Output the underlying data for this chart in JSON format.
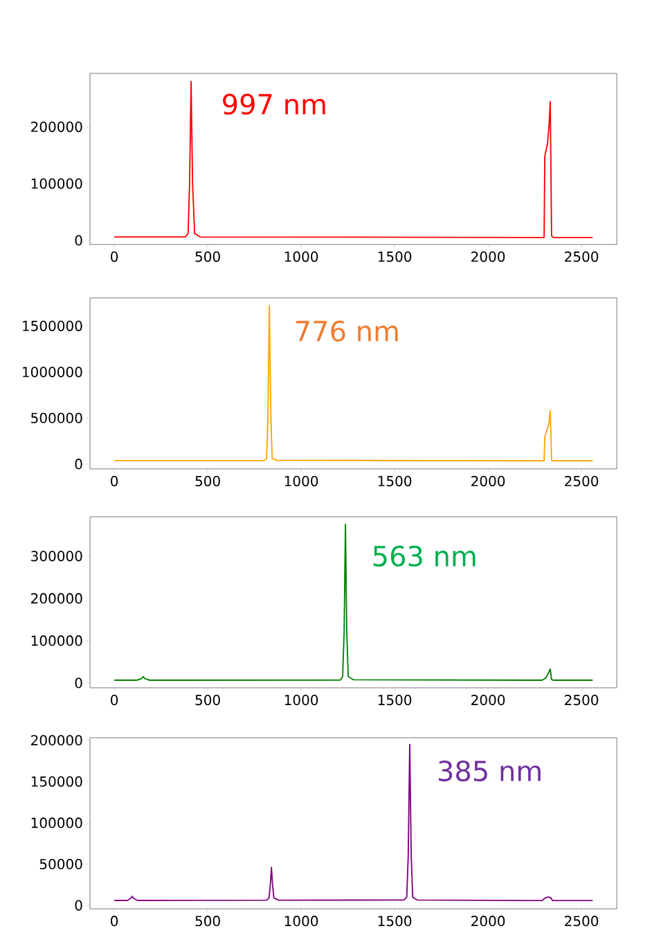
{
  "chart_data": [
    {
      "type": "line",
      "xlim": [
        -130,
        2689
      ],
      "ylim": [
        -7300,
        294000
      ],
      "xticks": [
        0,
        500,
        1000,
        1500,
        2000,
        2500
      ],
      "yticks": [
        0,
        100000,
        200000
      ],
      "annotations": [
        "997 nm"
      ],
      "series": [
        {
          "color": "#ff0000",
          "x": [
            0,
            380,
            395,
            403,
            411,
            419,
            430,
            460,
            2290,
            2300,
            2304,
            2318,
            2326,
            2333,
            2340,
            2350,
            2560
          ],
          "values": [
            6000,
            6000,
            12000,
            100000,
            280000,
            100000,
            12000,
            6000,
            5000,
            5000,
            149000,
            170000,
            200000,
            244000,
            8000,
            5000,
            5000
          ]
        }
      ]
    },
    {
      "type": "line",
      "xlim": [
        -130,
        2689
      ],
      "ylim": [
        -53000,
        1805000
      ],
      "xticks": [
        0,
        500,
        1000,
        1500,
        2000,
        2500
      ],
      "yticks": [
        0,
        500000,
        1000000,
        1500000
      ],
      "annotations": [
        "776 nm"
      ],
      "series": [
        {
          "color": "#ffa500",
          "x": [
            0,
            800,
            815,
            822,
            830,
            838,
            845,
            870,
            2290,
            2300,
            2304,
            2318,
            2326,
            2333,
            2340,
            2350,
            2560
          ],
          "values": [
            38000,
            38000,
            60000,
            500000,
            1722000,
            500000,
            60000,
            40000,
            35000,
            35000,
            300000,
            380000,
            450000,
            579000,
            40000,
            35000,
            35000
          ]
        }
      ]
    },
    {
      "type": "line",
      "xlim": [
        -130,
        2689
      ],
      "ylim": [
        -11500,
        393000
      ],
      "xticks": [
        0,
        500,
        1000,
        1500,
        2000,
        2500
      ],
      "yticks": [
        0,
        100000,
        200000,
        300000
      ],
      "annotations": [
        "563 nm"
      ],
      "series": [
        {
          "color": "#008000",
          "x": [
            0,
            120,
            145,
            155,
            165,
            190,
            1210,
            1222,
            1230,
            1237,
            1244,
            1252,
            1280,
            2290,
            2310,
            2325,
            2333,
            2340,
            2350,
            2560
          ],
          "values": [
            6500,
            6500,
            10000,
            15000,
            10000,
            6500,
            7000,
            15000,
            120000,
            375000,
            120000,
            15000,
            7500,
            6500,
            12000,
            25000,
            33000,
            8000,
            6500,
            6500
          ]
        }
      ]
    },
    {
      "type": "line",
      "xlim": [
        -130,
        2689
      ],
      "ylim": [
        -4200,
        203000
      ],
      "xticks": [
        0,
        500,
        1000,
        1500,
        2000,
        2500
      ],
      "yticks": [
        0,
        50000,
        100000,
        150000,
        200000
      ],
      "annotations": [
        "385 nm"
      ],
      "series": [
        {
          "color": "#800080",
          "x": [
            0,
            70,
            88,
            96,
            104,
            125,
            815,
            828,
            835,
            841,
            847,
            854,
            880,
            1550,
            1565,
            1573,
            1581,
            1589,
            1597,
            1620,
            2290,
            2305,
            2320,
            2335,
            2345,
            2560
          ],
          "values": [
            5900,
            5900,
            8500,
            11000,
            8500,
            5900,
            6200,
            9000,
            25000,
            46000,
            25000,
            9000,
            6200,
            6500,
            10000,
            60000,
            195000,
            60000,
            10000,
            6500,
            5800,
            9000,
            10000,
            9500,
            5800,
            5800
          ]
        }
      ]
    }
  ]
}
